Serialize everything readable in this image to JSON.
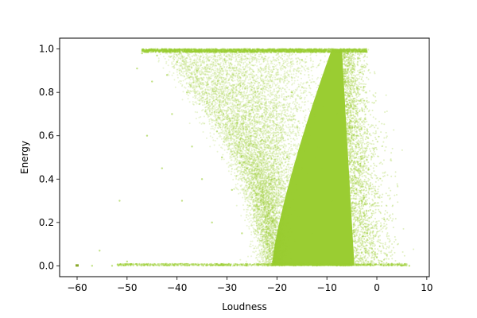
{
  "chart_data": {
    "type": "scatter",
    "title": "",
    "xlabel": "Loudness",
    "ylabel": "Energy",
    "xlim": [
      -63.5,
      10.5
    ],
    "ylim": [
      -0.05,
      1.05
    ],
    "xticks": [
      -60,
      -50,
      -40,
      -30,
      -20,
      -10,
      0,
      10
    ],
    "xtick_labels": [
      "−60",
      "−50",
      "−40",
      "−30",
      "−20",
      "−10",
      "0",
      "10"
    ],
    "yticks": [
      0.0,
      0.2,
      0.4,
      0.6,
      0.8,
      1.0
    ],
    "ytick_labels": [
      "0.0",
      "0.2",
      "0.4",
      "0.6",
      "0.8",
      "1.0"
    ],
    "grid": false,
    "legend": "none",
    "series": [
      {
        "color": "#9acd32",
        "points": [
          [
            -60.0,
            0.0
          ],
          [
            -57.0,
            0.0
          ],
          [
            -55.5,
            0.07
          ],
          [
            -53.0,
            0.0
          ],
          [
            -51.5,
            0.3
          ],
          [
            -50.0,
            0.02
          ],
          [
            -48.0,
            0.91
          ],
          [
            -47.0,
            0.98
          ],
          [
            -46.0,
            0.6
          ],
          [
            -45.0,
            0.85
          ],
          [
            -44.0,
            0.97
          ],
          [
            -43.0,
            0.45
          ],
          [
            -42.0,
            0.88
          ],
          [
            -41.0,
            0.7
          ],
          [
            -40.0,
            0.94
          ],
          [
            -39.0,
            0.3
          ],
          [
            -38.0,
            0.8
          ],
          [
            -37.0,
            0.55
          ],
          [
            -36.0,
            0.9
          ],
          [
            -35.0,
            0.4
          ],
          [
            -34.0,
            0.75
          ],
          [
            -33.0,
            0.2
          ],
          [
            -32.0,
            0.62
          ],
          [
            -31.0,
            0.5
          ],
          [
            -30.0,
            0.82
          ],
          [
            -29.0,
            0.35
          ],
          [
            -28.0,
            0.66
          ],
          [
            -27.0,
            0.15
          ],
          [
            -26.0,
            0.45
          ],
          [
            -25.0,
            0.72
          ],
          [
            -24.0,
            0.28
          ],
          [
            -23.0,
            0.58
          ],
          [
            -22.0,
            0.1
          ],
          [
            -21.0,
            0.4
          ],
          [
            -20.0,
            0.65
          ],
          [
            -19.0,
            0.22
          ],
          [
            -18.0,
            0.5
          ],
          [
            -17.0,
            0.8
          ],
          [
            -16.0,
            0.35
          ],
          [
            -15.0,
            0.95
          ],
          [
            -14.0,
            0.6
          ],
          [
            -13.0,
            0.15
          ],
          [
            -12.0,
            0.75
          ],
          [
            -11.0,
            0.45
          ],
          [
            -10.0,
            0.9
          ],
          [
            -9.0,
            0.3
          ],
          [
            -8.0,
            0.7
          ],
          [
            -7.0,
            0.55
          ],
          [
            -6.0,
            0.98
          ],
          [
            -5.0,
            0.25
          ],
          [
            -4.0,
            0.6
          ],
          [
            -3.0,
            0.3
          ],
          [
            -2.0,
            0.15
          ],
          [
            -1.0,
            0.08
          ],
          [
            0.0,
            0.04
          ],
          [
            1.0,
            0.02
          ],
          [
            2.0,
            0.05
          ],
          [
            3.0,
            0.01
          ],
          [
            5.0,
            0.0
          ],
          [
            6.5,
            0.0
          ]
        ]
      }
    ]
  }
}
